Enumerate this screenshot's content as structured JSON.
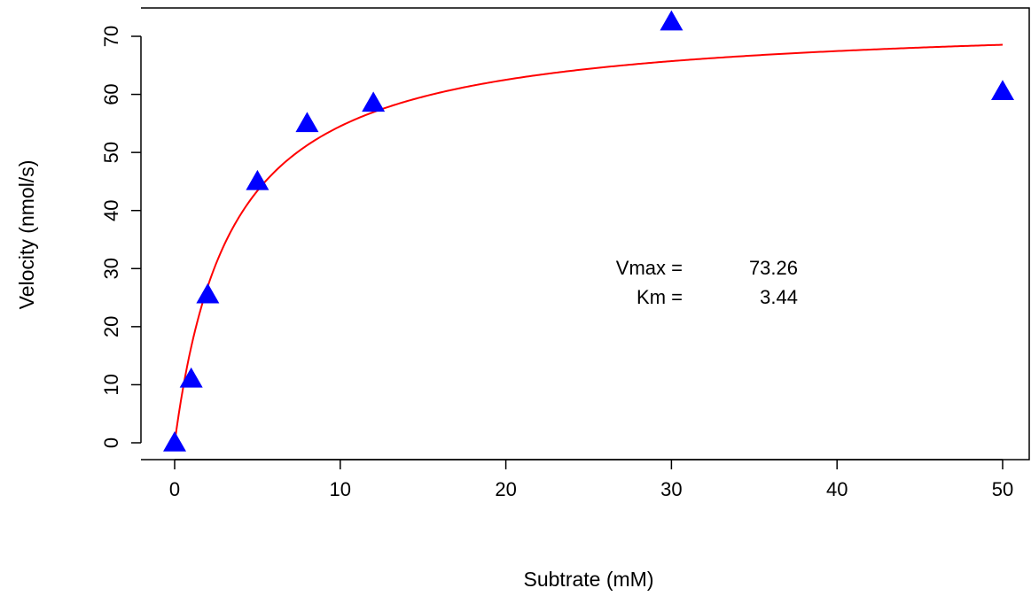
{
  "chart_data": {
    "type": "scatter",
    "title": "",
    "xlabel": "Subtrate (mM)",
    "ylabel": "Velocity (nmol/s)",
    "xlim": [
      -1,
      51
    ],
    "ylim": [
      -3,
      75
    ],
    "xticks": [
      0,
      10,
      20,
      30,
      40,
      50
    ],
    "yticks": [
      0,
      10,
      20,
      30,
      40,
      50,
      60,
      70
    ],
    "xtick_labels": [
      "0",
      "10",
      "20",
      "30",
      "40",
      "50"
    ],
    "ytick_labels": [
      "0",
      "10",
      "20",
      "30",
      "40",
      "50",
      "60",
      "70"
    ],
    "grid": false,
    "series": [
      {
        "type": "scatter",
        "marker": "triangle",
        "color": "#0000FF",
        "x": [
          0,
          1,
          2,
          5,
          8,
          12,
          30,
          50
        ],
        "y": [
          0,
          11,
          25.5,
          45,
          55,
          58.5,
          72.5,
          60.5
        ]
      },
      {
        "type": "line",
        "color": "#FF0000",
        "fit": "michaelis-menten",
        "vmax": 73.26,
        "km": 3.44,
        "x_range": [
          0,
          50
        ]
      }
    ],
    "annotations": [
      {
        "label": "Vmax =",
        "value": "73.26"
      },
      {
        "label": "Km =",
        "value": "3.44"
      }
    ]
  }
}
